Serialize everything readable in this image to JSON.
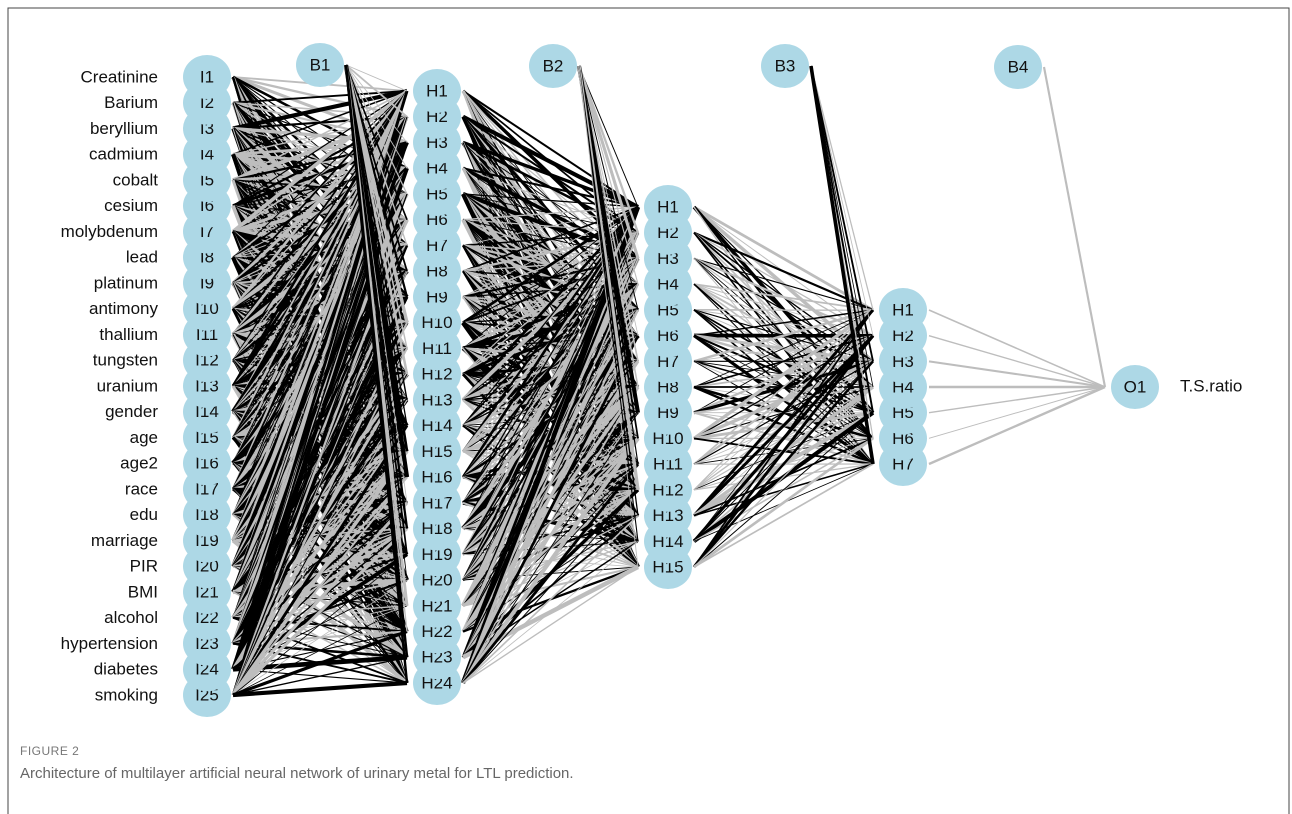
{
  "inputs": [
    {
      "label": "Creatinine",
      "node": "I1"
    },
    {
      "label": "Barium",
      "node": "I2"
    },
    {
      "label": "beryllium",
      "node": "I3"
    },
    {
      "label": "cadmium",
      "node": "I4"
    },
    {
      "label": "cobalt",
      "node": "I5"
    },
    {
      "label": "cesium",
      "node": "I6"
    },
    {
      "label": "molybdenum",
      "node": "I7"
    },
    {
      "label": "lead",
      "node": "I8"
    },
    {
      "label": "platinum",
      "node": "I9"
    },
    {
      "label": "antimony",
      "node": "I10"
    },
    {
      "label": "thallium",
      "node": "I11"
    },
    {
      "label": "tungsten",
      "node": "I12"
    },
    {
      "label": "uranium",
      "node": "I13"
    },
    {
      "label": "gender",
      "node": "I14"
    },
    {
      "label": "age",
      "node": "I15"
    },
    {
      "label": "age2",
      "node": "I16"
    },
    {
      "label": "race",
      "node": "I17"
    },
    {
      "label": "edu",
      "node": "I18"
    },
    {
      "label": "marriage",
      "node": "I19"
    },
    {
      "label": "PIR",
      "node": "I20"
    },
    {
      "label": "BMI",
      "node": "I21"
    },
    {
      "label": "alcohol",
      "node": "I22"
    },
    {
      "label": "hypertension",
      "node": "I23"
    },
    {
      "label": "diabetes",
      "node": "I24"
    },
    {
      "label": "smoking",
      "node": "I25"
    }
  ],
  "biases": [
    "B1",
    "B2",
    "B3",
    "B4"
  ],
  "hidden_layers": [
    [
      "H1",
      "H2",
      "H3",
      "H4",
      "H5",
      "H6",
      "H7",
      "H8",
      "H9",
      "H10",
      "H11",
      "H12",
      "H13",
      "H14",
      "H15",
      "H16",
      "H17",
      "H18",
      "H19",
      "H20",
      "H21",
      "H22",
      "H23",
      "H24"
    ],
    [
      "H1",
      "H2",
      "H3",
      "H4",
      "H5",
      "H6",
      "H7",
      "H8",
      "H9",
      "H10",
      "H11",
      "H12",
      "H13",
      "H14",
      "H15"
    ],
    [
      "H1",
      "H2",
      "H3",
      "H4",
      "H5",
      "H6",
      "H7"
    ]
  ],
  "output": {
    "node": "O1",
    "label": "T.S.ratio"
  },
  "caption": {
    "label": "FIGURE 2",
    "text": "Architecture of multilayer artificial neural network of urinary metal for LTL prediction."
  }
}
